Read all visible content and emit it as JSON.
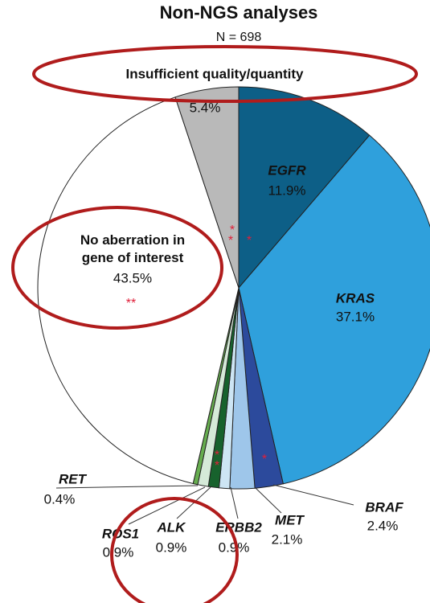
{
  "chart_data": {
    "type": "pie",
    "title": "Non-NGS analyses",
    "subtitle": "N = 698",
    "categories": [
      "EGFR",
      "KRAS",
      "BRAF",
      "MET",
      "ERBB2",
      "ALK",
      "ROS1",
      "RET",
      "No aberration in\ngene of interest",
      "Insufficient quality/quantity"
    ],
    "values": [
      11.9,
      37.1,
      2.4,
      2.1,
      0.9,
      0.9,
      0.9,
      0.4,
      43.5,
      5.4
    ],
    "value_labels": [
      "11.9%",
      "37.1%",
      "2.4%",
      "2.1%",
      "0.9%",
      "0.9%",
      "0.9%",
      "0.4%",
      "43.5%",
      "5.4%"
    ],
    "colors": [
      "#0d5f87",
      "#2fa0dc",
      "#2c4a9c",
      "#9ec6ea",
      "#cde5f4",
      "#17622d",
      "#d5ead8",
      "#66ad4f",
      "#ffffff",
      "#b9b9b9"
    ],
    "annotations": [
      "*",
      "*",
      "*",
      "**",
      "*",
      "*",
      "*"
    ]
  }
}
